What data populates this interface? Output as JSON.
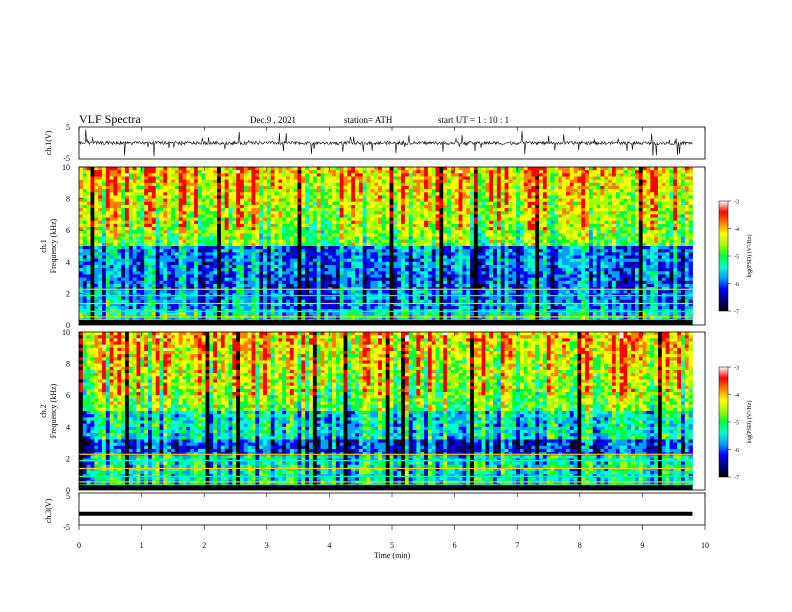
{
  "header": {
    "title": "VLF  Spectra",
    "date": "Dec.9  , 2021",
    "station": "station= ATH",
    "start_ut": "start  UT  =    1  : 10 : 1"
  },
  "chart_data": [
    {
      "type": "line",
      "name_label": "ch.1(V)",
      "ylabel": "ch.1(V)",
      "ylim": [
        -5,
        5
      ],
      "yticks": [
        "5",
        "-5"
      ],
      "x_range": [
        0,
        10
      ],
      "mean_level": 0,
      "spike_amplitude": 4
    },
    {
      "type": "heatmap",
      "ylabel_top": "ch.1",
      "ylabel": "Frequency  (kHz)",
      "ylim": [
        0,
        10
      ],
      "yticks": [
        "0",
        "2",
        "4",
        "6",
        "8",
        "10"
      ],
      "x_range": [
        0,
        10
      ],
      "colorbar": {
        "label": "log(PSD) (V²/Hz)",
        "range": [
          -7,
          -3
        ],
        "ticks": [
          "-3",
          "-4",
          "-5",
          "-6",
          "-7"
        ],
        "colors": [
          "#000000",
          "#000080",
          "#0000ff",
          "#00a0ff",
          "#00ffd0",
          "#00ff40",
          "#a0ff00",
          "#ffff00",
          "#ff8000",
          "#ff0000",
          "#ffffff"
        ]
      }
    },
    {
      "type": "heatmap",
      "ylabel_top": "ch.2",
      "ylabel": "Frequency  (kHz)",
      "ylim": [
        0,
        10
      ],
      "yticks": [
        "0",
        "2",
        "4",
        "6",
        "8",
        "10"
      ],
      "x_range": [
        0,
        10
      ],
      "colorbar": {
        "label": "log(PSD) (V²/Hz)",
        "range": [
          -7,
          -3
        ],
        "ticks": [
          "-3",
          "-4",
          "-5",
          "-6",
          "-7"
        ],
        "colors": [
          "#000000",
          "#000080",
          "#0000ff",
          "#00a0ff",
          "#00ffd0",
          "#00ff40",
          "#a0ff00",
          "#ffff00",
          "#ff8000",
          "#ff0000",
          "#ffffff"
        ]
      }
    },
    {
      "type": "line",
      "ylabel": "ch.3(V)",
      "ylim": [
        -5,
        5
      ],
      "yticks": [
        "5",
        "-5"
      ],
      "x_range": [
        0,
        10
      ],
      "mean_level": -1.5
    }
  ],
  "x_axis": {
    "label": "Time  (min)",
    "ticks": [
      "0",
      "1",
      "2",
      "3",
      "4",
      "5",
      "6",
      "7",
      "8",
      "9",
      "10"
    ],
    "data_end": 9.8
  }
}
